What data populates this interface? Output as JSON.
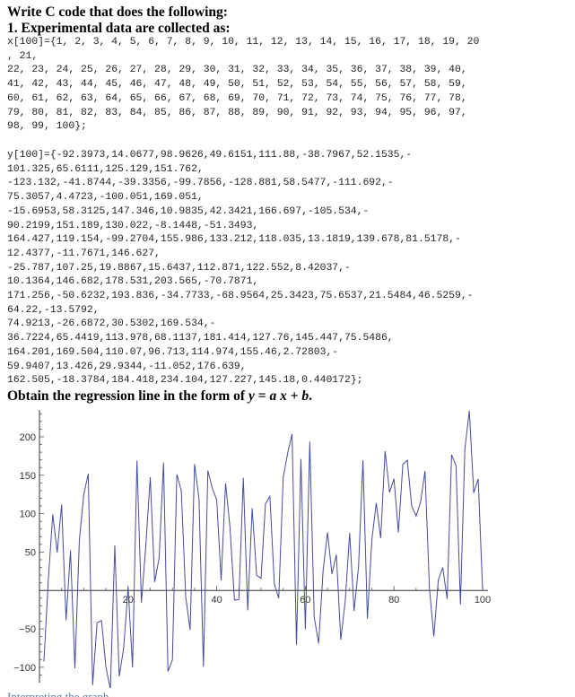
{
  "problem": {
    "title": "Write C code that does the following:",
    "step1": "1. Experimental data are collected as:",
    "x_code": "x[100]={1, 2, 3, 4, 5, 6, 7, 8, 9, 10, 11, 12, 13, 14, 15, 16, 17, 18, 19, 20\n, 21,\n22, 23, 24, 25, 26, 27, 28, 29, 30, 31, 32, 33, 34, 35, 36, 37, 38, 39, 40,\n41, 42, 43, 44, 45, 46, 47, 48, 49, 50, 51, 52, 53, 54, 55, 56, 57, 58, 59,\n60, 61, 62, 63, 64, 65, 66, 67, 68, 69, 70, 71, 72, 73, 74, 75, 76, 77, 78,\n79, 80, 81, 82, 83, 84, 85, 86, 87, 88, 89, 90, 91, 92, 93, 94, 95, 96, 97,\n98, 99, 100};",
    "y_code": "y[100]={-92.3973,14.0677,98.9626,49.6151,111.88,-38.7967,52.1535,-\n101.325,65.6111,125.129,151.762,\n-123.132,-41.8744,-39.3356,-99.7856,-128.881,58.5477,-111.692,-\n75.3057,4.4723,-100.051,169.051,\n-15.6953,58.3125,147.346,10.9835,42.3421,166.697,-105.534,-\n90.2199,151.189,130.022,-8.1448,-51.3493,\n164.427,119.154,-99.2704,155.986,133.212,118.035,13.1819,139.678,81.5178,-\n12.4377,-11.7671,146.627,\n-25.787,107.25,19.8867,15.6437,112.871,122.552,8.42037,-\n10.1364,146.682,178.531,203.565,-70.7871,\n171.256,-50.6232,193.836,-34.7733,-68.9564,25.3423,75.6537,21.5484,46.5259,-\n64.22,-13.5792,\n74.9213,-26.6872,30.5302,169.534,-\n36.7224,65.4419,113.978,68.1137,181.414,127.76,145.447,75.5486,\n164.201,169.504,110.07,96.713,114.974,155.46,2.72803,-\n59.9407,13.426,29.9344,-11.052,176.639,\n162.505,-18.3784,184.418,234.104,127.227,145.18,0.440172};",
    "task_prefix": "Obtain the regression line in the form of ",
    "task_y": "y",
    "task_eq": " = ",
    "task_a": "a",
    "task_x": "x",
    "task_plus": " + ",
    "task_b": "b",
    "task_end": ".",
    "next_line": "Interpreting the graph"
  },
  "chart_data": {
    "type": "line",
    "title": "",
    "xlabel": "",
    "ylabel": "",
    "xlim": [
      0,
      100
    ],
    "ylim": [
      -120,
      235
    ],
    "x_ticks": [
      20,
      40,
      60,
      80,
      100
    ],
    "y_ticks": [
      -100,
      -50,
      50,
      100,
      150,
      200
    ],
    "line_color": "#4a4a9c",
    "x": [
      1,
      2,
      3,
      4,
      5,
      6,
      7,
      8,
      9,
      10,
      11,
      12,
      13,
      14,
      15,
      16,
      17,
      18,
      19,
      20,
      21,
      22,
      23,
      24,
      25,
      26,
      27,
      28,
      29,
      30,
      31,
      32,
      33,
      34,
      35,
      36,
      37,
      38,
      39,
      40,
      41,
      42,
      43,
      44,
      45,
      46,
      47,
      48,
      49,
      50,
      51,
      52,
      53,
      54,
      55,
      56,
      57,
      58,
      59,
      60,
      61,
      62,
      63,
      64,
      65,
      66,
      67,
      68,
      69,
      70,
      71,
      72,
      73,
      74,
      75,
      76,
      77,
      78,
      79,
      80,
      81,
      82,
      83,
      84,
      85,
      86,
      87,
      88,
      89,
      90,
      91,
      92,
      93,
      94,
      95,
      96,
      97,
      98,
      99,
      100
    ],
    "y": [
      -92.3973,
      14.0677,
      98.9626,
      49.6151,
      111.88,
      -38.7967,
      52.1535,
      -101.325,
      65.6111,
      125.129,
      151.762,
      -123.132,
      -41.8744,
      -39.3356,
      -99.7856,
      -128.881,
      58.5477,
      -111.692,
      -75.3057,
      4.4723,
      -100.051,
      169.051,
      -15.6953,
      58.3125,
      147.346,
      10.9835,
      42.3421,
      166.697,
      -105.534,
      -90.2199,
      151.189,
      130.022,
      -8.1448,
      -51.3493,
      164.427,
      119.154,
      -99.2704,
      155.986,
      133.212,
      118.035,
      13.1819,
      139.678,
      81.5178,
      -12.4377,
      -11.7671,
      146.627,
      -25.787,
      107.25,
      19.8867,
      15.6437,
      112.871,
      122.552,
      8.42037,
      -10.1364,
      146.682,
      178.531,
      203.565,
      -70.7871,
      171.256,
      -50.6232,
      193.836,
      -34.7733,
      -68.9564,
      25.3423,
      75.6537,
      21.5484,
      46.5259,
      -64.22,
      -13.5792,
      74.9213,
      -26.6872,
      30.5302,
      169.534,
      -36.7224,
      65.4419,
      113.978,
      68.1137,
      181.414,
      127.76,
      145.447,
      75.5486,
      164.201,
      169.504,
      110.07,
      96.713,
      114.974,
      155.46,
      2.72803,
      -59.9407,
      13.426,
      29.9344,
      -11.052,
      176.639,
      162.505,
      -18.3784,
      184.418,
      234.104,
      127.227,
      145.18,
      0.440172
    ]
  }
}
